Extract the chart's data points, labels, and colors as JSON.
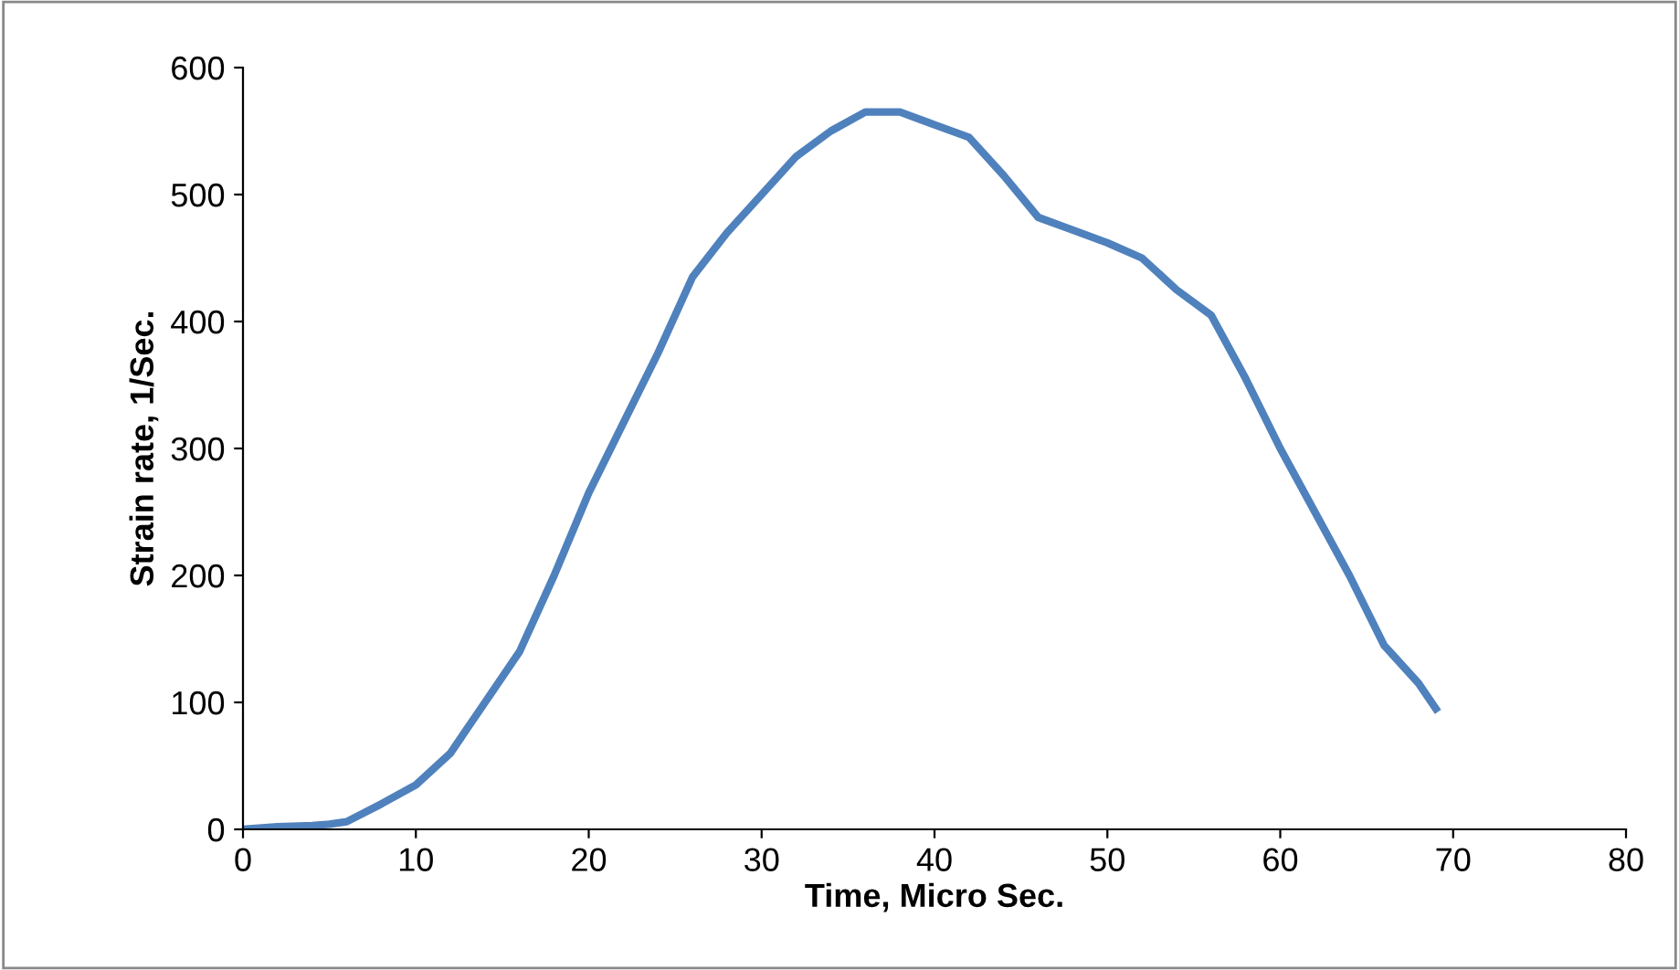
{
  "chart_data": {
    "type": "line",
    "xlabel": "Time, Micro Sec.",
    "ylabel": "Strain rate, 1/Sec.",
    "x": [
      0,
      2,
      4,
      5,
      6,
      8,
      10,
      12,
      14,
      16,
      18,
      20,
      22,
      24,
      26,
      28,
      30,
      32,
      34,
      36,
      38,
      40,
      42,
      44,
      46,
      48,
      50,
      52,
      54,
      56,
      58,
      60,
      62,
      64,
      66,
      68,
      69
    ],
    "series": [
      {
        "color": "#4f81bd",
        "values": [
          0,
          2,
          3,
          4,
          6,
          20,
          35,
          60,
          100,
          140,
          200,
          265,
          320,
          375,
          435,
          470,
          500,
          530,
          550,
          565,
          565,
          555,
          545,
          515,
          482,
          472,
          462,
          450,
          425,
          405,
          355,
          300,
          250,
          200,
          145,
          115,
          95
        ]
      }
    ],
    "xlim": [
      0,
      80
    ],
    "xticks": [
      0,
      10,
      20,
      30,
      40,
      50,
      60,
      70,
      80
    ],
    "ylim": [
      0,
      600
    ],
    "yticks": [
      0,
      100,
      200,
      300,
      400,
      500,
      600
    ],
    "grid": false,
    "legend": false,
    "marker": "none",
    "line_style": "solid"
  }
}
